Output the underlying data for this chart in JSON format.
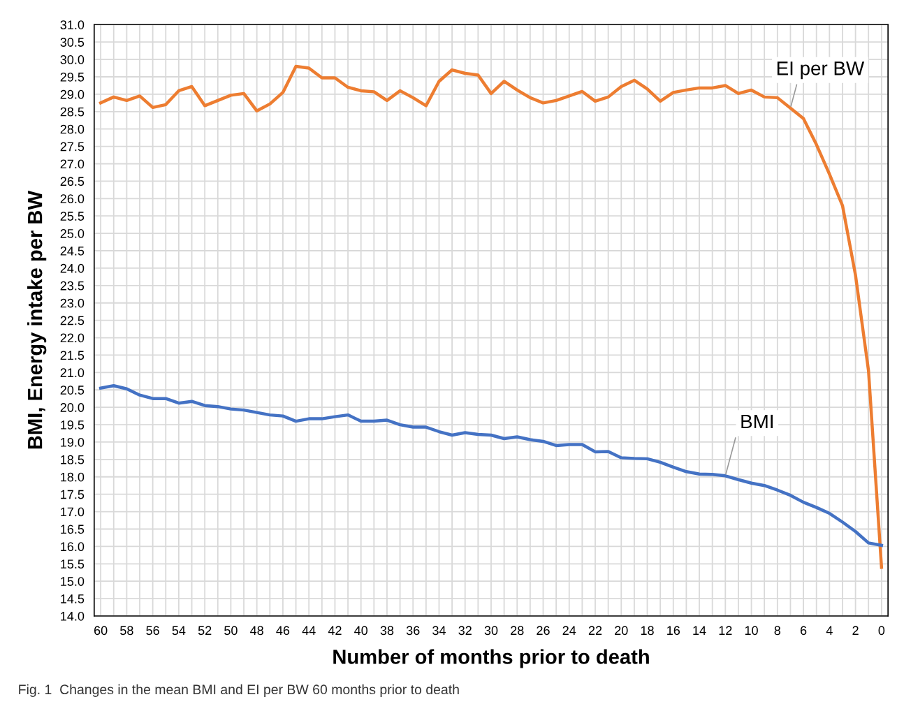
{
  "chart_data": {
    "type": "line",
    "xlabel": "Number of months prior to death",
    "ylabel": "BMI, Energy intake per BW",
    "annotations": [
      "Fig. 1  Changes in the mean BMI and EI per BW 60 months prior to death"
    ],
    "x": [
      60,
      59,
      58,
      57,
      56,
      55,
      54,
      53,
      52,
      51,
      50,
      49,
      48,
      47,
      46,
      45,
      44,
      43,
      42,
      41,
      40,
      39,
      38,
      37,
      36,
      35,
      34,
      33,
      32,
      31,
      30,
      29,
      28,
      27,
      26,
      25,
      24,
      23,
      22,
      21,
      20,
      19,
      18,
      17,
      16,
      15,
      14,
      13,
      12,
      11,
      10,
      9,
      8,
      7,
      6,
      5,
      4,
      3,
      2,
      1,
      0
    ],
    "series": [
      {
        "name": "EI per BW",
        "color": "#ed7d31",
        "values": [
          28.75,
          28.92,
          28.82,
          28.95,
          28.62,
          28.7,
          29.1,
          29.22,
          28.67,
          28.82,
          28.97,
          29.02,
          28.52,
          28.72,
          29.05,
          29.8,
          29.75,
          29.47,
          29.47,
          29.2,
          29.1,
          29.07,
          28.82,
          29.1,
          28.9,
          28.67,
          29.37,
          29.7,
          29.6,
          29.55,
          29.02,
          29.37,
          29.12,
          28.9,
          28.75,
          28.82,
          28.95,
          29.08,
          28.8,
          28.92,
          29.22,
          29.4,
          29.15,
          28.8,
          29.05,
          29.12,
          29.18,
          29.18,
          29.25,
          29.02,
          29.12,
          28.92,
          28.9,
          28.6,
          28.3,
          27.55,
          26.7,
          25.8,
          23.8,
          21.05,
          15.4
        ]
      },
      {
        "name": "BMI",
        "color": "#4472c4",
        "values": [
          20.55,
          20.62,
          20.53,
          20.35,
          20.25,
          20.25,
          20.12,
          20.17,
          20.05,
          20.02,
          19.95,
          19.92,
          19.85,
          19.78,
          19.75,
          19.6,
          19.67,
          19.67,
          19.73,
          19.78,
          19.6,
          19.6,
          19.63,
          19.5,
          19.43,
          19.43,
          19.3,
          19.2,
          19.27,
          19.22,
          19.2,
          19.1,
          19.15,
          19.07,
          19.02,
          18.9,
          18.93,
          18.93,
          18.72,
          18.73,
          18.55,
          18.53,
          18.52,
          18.42,
          18.28,
          18.15,
          18.08,
          18.07,
          18.03,
          17.92,
          17.82,
          17.75,
          17.62,
          17.47,
          17.27,
          17.12,
          16.95,
          16.7,
          16.43,
          16.1,
          16.03
        ]
      }
    ],
    "xlim": [
      60.5,
      -0.5
    ],
    "xticks": [
      60,
      {
        "value": 59,
        "label": null
      },
      58,
      {
        "value": 57,
        "label": null
      },
      56,
      {
        "value": 55,
        "label": null
      },
      54,
      {
        "value": 53,
        "label": null
      },
      52,
      {
        "value": 51,
        "label": null
      },
      50,
      {
        "value": 49,
        "label": null
      },
      48,
      {
        "value": 47,
        "label": null
      },
      46,
      {
        "value": 45,
        "label": null
      },
      44,
      {
        "value": 43,
        "label": null
      },
      42,
      {
        "value": 41,
        "label": null
      },
      40,
      {
        "value": 39,
        "label": null
      },
      38,
      {
        "value": 37,
        "label": null
      },
      36,
      {
        "value": 35,
        "label": null
      },
      34,
      {
        "value": 33,
        "label": null
      },
      32,
      {
        "value": 31,
        "label": null
      },
      30,
      {
        "value": 29,
        "label": null
      },
      28,
      {
        "value": 27,
        "label": null
      },
      26,
      {
        "value": 25,
        "label": null
      },
      24,
      {
        "value": 23,
        "label": null
      },
      22,
      {
        "value": 21,
        "label": null
      },
      20,
      {
        "value": 19,
        "label": null
      },
      18,
      {
        "value": 17,
        "label": null
      },
      16,
      {
        "value": 15,
        "label": null
      },
      14,
      {
        "value": 13,
        "label": null
      },
      12,
      {
        "value": 11,
        "label": null
      },
      10,
      {
        "value": 9,
        "label": null
      },
      8,
      {
        "value": 7,
        "label": null
      },
      6,
      {
        "value": 5,
        "label": null
      },
      4,
      {
        "value": 3,
        "label": null
      },
      2,
      {
        "value": 1,
        "label": null
      },
      0
    ],
    "ylim": [
      14,
      31
    ],
    "yticks": [
      {
        "value": 14,
        "label": "14.0"
      },
      14.5,
      {
        "value": 15,
        "label": "15.0"
      },
      15.5,
      {
        "value": 16,
        "label": "16.0"
      },
      16.5,
      {
        "value": 17,
        "label": "17.0"
      },
      17.5,
      {
        "value": 18,
        "label": "18.0"
      },
      18.5,
      {
        "value": 19,
        "label": "19.0"
      },
      19.5,
      {
        "value": 20,
        "label": "20.0"
      },
      20.5,
      {
        "value": 21,
        "label": "21.0"
      },
      21.5,
      {
        "value": 22,
        "label": "22.0"
      },
      22.5,
      {
        "value": 23,
        "label": "23.0"
      },
      23.5,
      {
        "value": 24,
        "label": "24.0"
      },
      24.5,
      {
        "value": 25,
        "label": "25.0"
      },
      25.5,
      {
        "value": 26,
        "label": "26.0"
      },
      26.5,
      {
        "value": 27,
        "label": "27.0"
      },
      27.5,
      {
        "value": 28,
        "label": "28.0"
      },
      28.5,
      {
        "value": 29,
        "label": "29.0"
      },
      29.5,
      {
        "value": 30,
        "label": "30.0"
      },
      30.5,
      {
        "value": 31,
        "label": "31.0"
      }
    ],
    "grid": true,
    "marker": "none",
    "line_style": "solid",
    "legend": false
  }
}
